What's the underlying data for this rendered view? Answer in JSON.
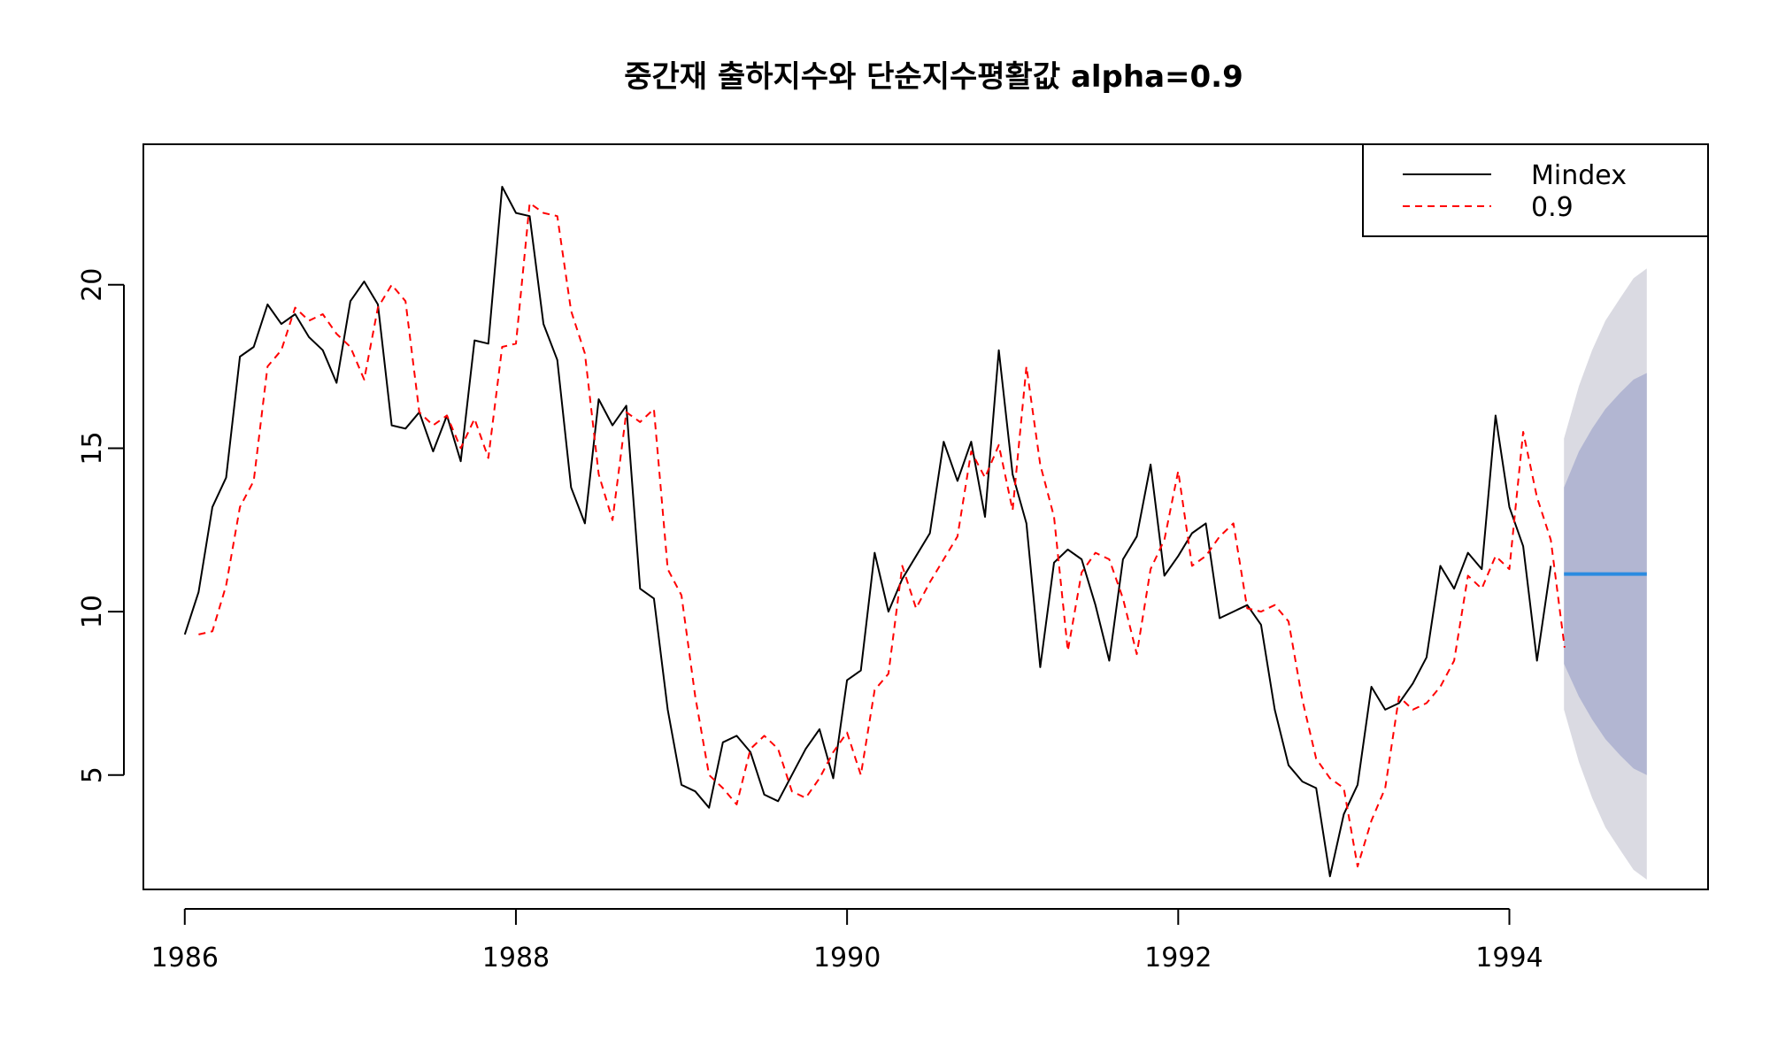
{
  "chart_data": {
    "type": "line",
    "title": "중간재 출하지수와 단순지수평활값 alpha=0.9",
    "xlabel": "",
    "ylabel": "",
    "xlim": [
      1985.75,
      1995.2
    ],
    "ylim": [
      1.5,
      24.3
    ],
    "x_ticks": [
      1986,
      1988,
      1990,
      1992,
      1994
    ],
    "x_tick_labels": [
      "1986",
      "1988",
      "1990",
      "1992",
      "1994"
    ],
    "y_ticks": [
      5,
      10,
      15,
      20
    ],
    "y_tick_labels": [
      "5",
      "10",
      "15",
      "20"
    ],
    "grid": false,
    "legend": {
      "position": "top-right",
      "entries": [
        "Mindex",
        "0.9"
      ]
    },
    "x_start": 1986.0,
    "x_step": 0.0833333,
    "series": [
      {
        "name": "Mindex",
        "color": "#000000",
        "dash": "solid",
        "values": [
          9.3,
          10.6,
          13.2,
          14.1,
          17.8,
          18.1,
          19.4,
          18.8,
          19.1,
          18.4,
          18.0,
          17.0,
          19.5,
          20.1,
          19.4,
          15.7,
          15.6,
          16.1,
          14.9,
          16.0,
          14.6,
          18.3,
          18.2,
          23.0,
          22.2,
          22.1,
          18.8,
          17.7,
          13.8,
          12.7,
          16.5,
          15.7,
          16.3,
          10.7,
          10.4,
          7.0,
          4.7,
          4.5,
          4.0,
          6.0,
          6.2,
          5.7,
          4.4,
          4.2,
          5.0,
          5.8,
          6.4,
          4.9,
          7.9,
          8.2,
          11.8,
          10.0,
          11.0,
          11.7,
          12.4,
          15.2,
          14.0,
          15.2,
          12.9,
          18.0,
          14.2,
          12.7,
          8.3,
          11.5,
          11.9,
          11.6,
          10.2,
          8.5,
          11.6,
          12.3,
          14.5,
          11.1,
          11.7,
          12.4,
          12.7,
          9.8,
          10.0,
          10.2,
          9.6,
          7.0,
          5.3,
          4.8,
          4.6,
          1.9,
          3.8,
          4.7,
          7.7,
          7.0,
          7.2,
          7.8,
          8.6,
          11.4,
          10.7,
          11.8,
          11.3,
          16.0,
          13.2,
          12.0,
          8.5,
          11.4
        ]
      },
      {
        "name": "0.9",
        "color": "#ff0000",
        "dash": "dashed",
        "values": [
          null,
          9.3,
          9.4,
          10.8,
          13.2,
          14.0,
          17.5,
          18.0,
          19.3,
          18.9,
          19.1,
          18.5,
          18.1,
          17.1,
          19.3,
          20.0,
          19.5,
          16.1,
          15.7,
          16.0,
          15.0,
          15.9,
          14.7,
          18.1,
          18.2,
          22.5,
          22.2,
          22.1,
          19.2,
          17.9,
          14.2,
          12.8,
          16.1,
          15.8,
          16.2,
          11.3,
          10.5,
          7.4,
          5.0,
          4.6,
          4.1,
          5.8,
          6.2,
          5.8,
          4.5,
          4.3,
          4.9,
          5.7,
          6.3,
          5.0,
          7.6,
          8.1,
          11.4,
          10.1,
          10.9,
          11.6,
          12.3,
          14.9,
          14.1,
          15.1,
          13.1,
          17.5,
          14.5,
          12.9,
          8.8,
          11.2,
          11.8,
          11.6,
          10.4,
          8.7,
          11.3,
          12.2,
          14.3,
          11.4,
          11.7,
          12.3,
          12.7,
          10.1,
          10.0,
          10.2,
          9.7,
          7.3,
          5.5,
          4.9,
          4.6,
          2.2,
          3.6,
          4.6,
          7.4,
          7.0,
          7.2,
          7.7,
          8.5,
          11.1,
          10.7,
          11.7,
          11.3,
          15.5,
          13.5,
          12.2,
          8.9
        ]
      }
    ],
    "forecast": {
      "x": [
        1994.33,
        1994.42,
        1994.5,
        1994.58,
        1994.67,
        1994.75,
        1994.83
      ],
      "mean": 11.15,
      "lower80": [
        8.4,
        7.4,
        6.7,
        6.1,
        5.6,
        5.2,
        5.0
      ],
      "upper80": [
        13.8,
        14.9,
        15.6,
        16.2,
        16.7,
        17.1,
        17.3
      ],
      "lower95": [
        7.0,
        5.4,
        4.3,
        3.4,
        2.7,
        2.1,
        1.8
      ],
      "upper95": [
        15.3,
        16.9,
        18.0,
        18.9,
        19.6,
        20.2,
        20.5
      ],
      "band95_color": "#dadae2",
      "band80_color": "#b2b6d2",
      "mean_color": "#2b8be0"
    }
  }
}
